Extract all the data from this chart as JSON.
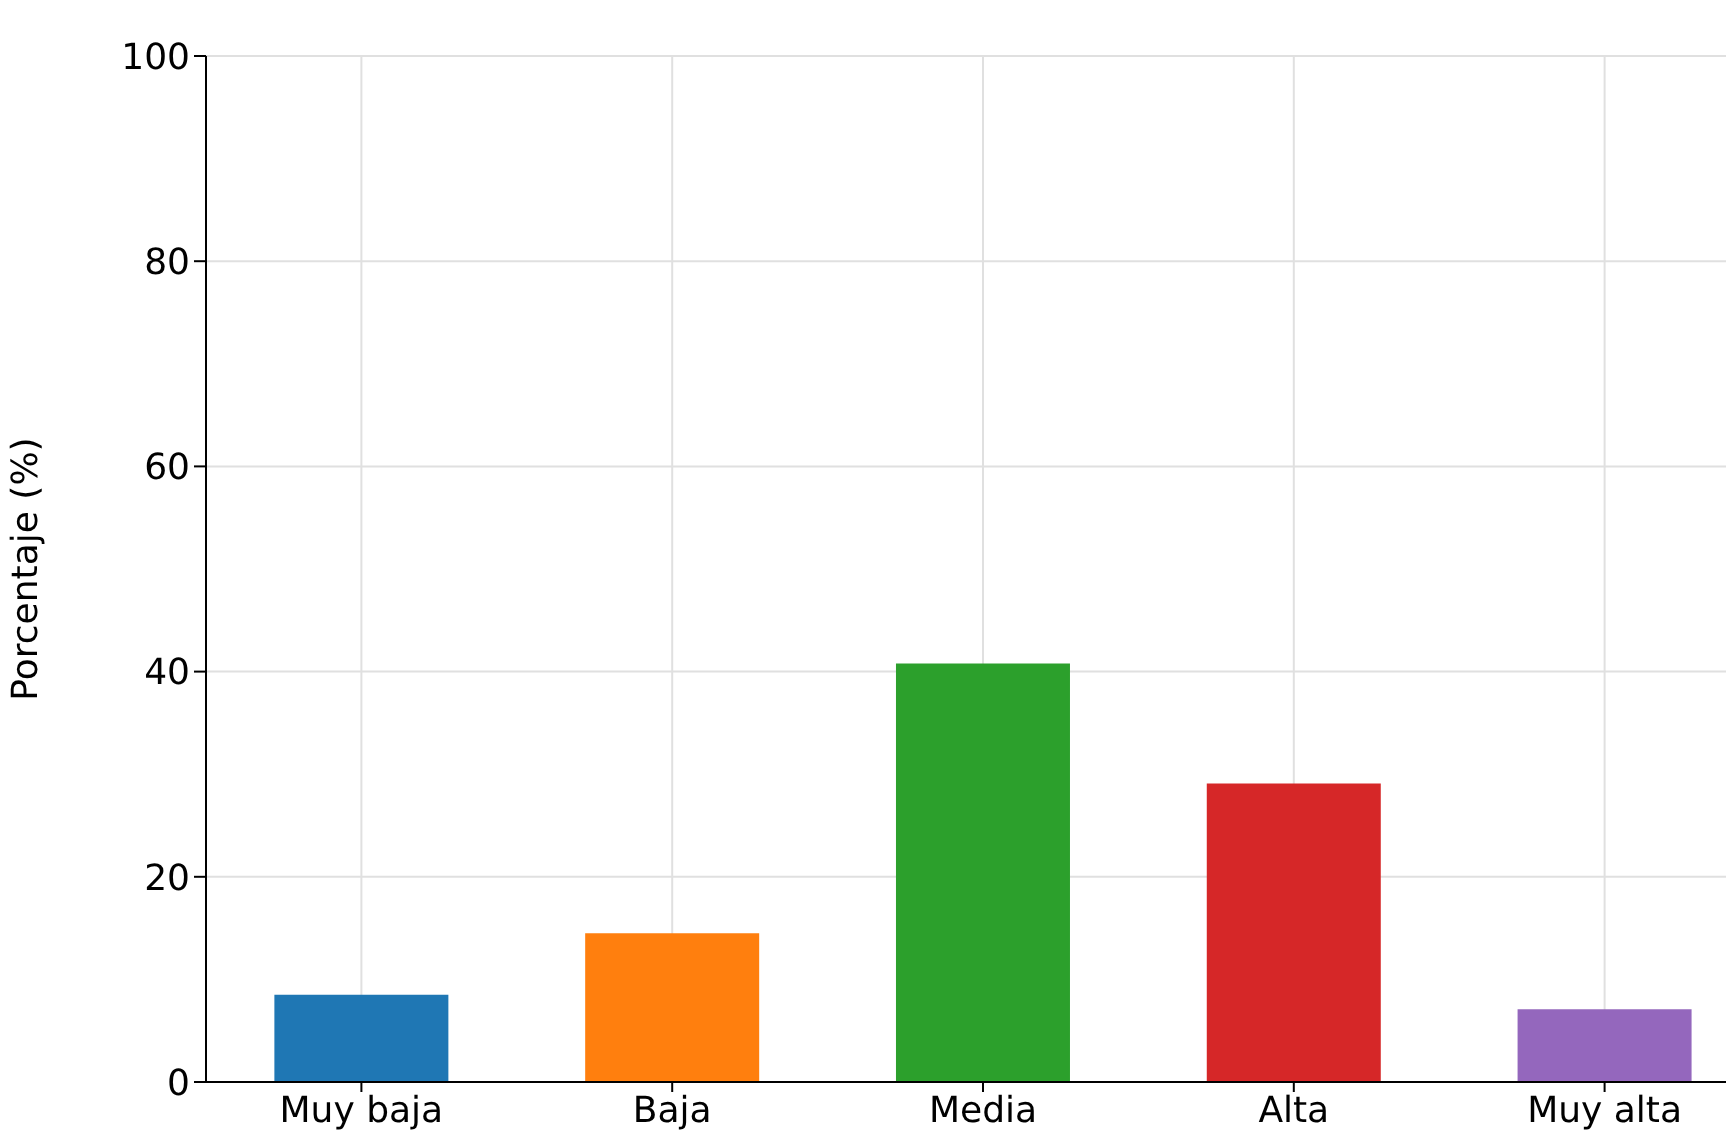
{
  "chart_data": {
    "type": "bar",
    "ylabel": "Porcentaje (%)",
    "categories": [
      "Muy baja",
      "Baja",
      "Media",
      "Alta",
      "Muy alta"
    ],
    "values": [
      8.5,
      14.5,
      40.8,
      29.1,
      7.1
    ],
    "colors": [
      "#1f77b4",
      "#ff7f0e",
      "#2ca02c",
      "#d62728",
      "#9467bd"
    ],
    "ylim": [
      0,
      100
    ],
    "yticks": [
      0,
      20,
      40,
      60,
      80,
      100
    ],
    "grid": true
  }
}
